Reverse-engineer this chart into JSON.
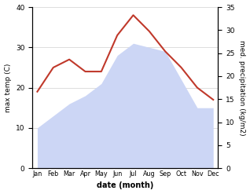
{
  "months": [
    "Jan",
    "Feb",
    "Mar",
    "Apr",
    "May",
    "Jun",
    "Jul",
    "Aug",
    "Sep",
    "Oct",
    "Nov",
    "Dec"
  ],
  "temperature": [
    19,
    25,
    27,
    24,
    24,
    33,
    38,
    34,
    29,
    25,
    20,
    17
  ],
  "precipitation": [
    10,
    13,
    16,
    18,
    21,
    28,
    31,
    30,
    29,
    22,
    15,
    15
  ],
  "temp_color": "#c0392b",
  "precip_color_fill": "#ccd6f5",
  "temp_ylim": [
    0,
    40
  ],
  "precip_ylim": [
    0,
    35
  ],
  "xlabel": "date (month)",
  "ylabel_left": "max temp (C)",
  "ylabel_right": "med. precipitation (kg/m2)",
  "background_color": "#ffffff",
  "grid_color": "#d0d0d0"
}
